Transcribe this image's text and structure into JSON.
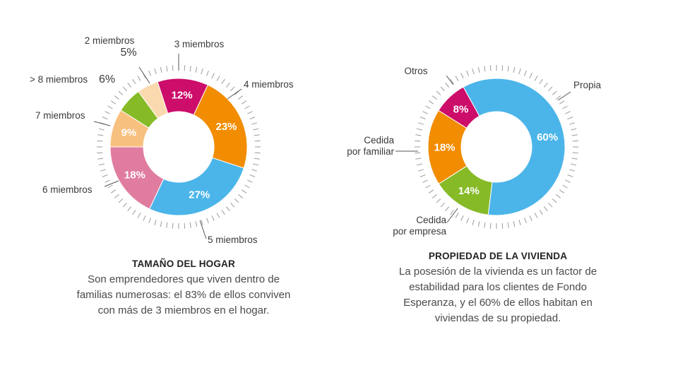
{
  "colors": {
    "magenta": "#cc0d6a",
    "orange": "#f28c00",
    "blue": "#4bb5e9",
    "pink": "#e07ca0",
    "light_orange": "#f8c07f",
    "green": "#86ba27",
    "beige": "#fbd9ae"
  },
  "chart_data": [
    {
      "type": "pie",
      "title": "TAMAÑO DEL HOGAR",
      "description": "Son emprendedores que viven dentro de familias numerosas: el 83% de ellos conviven con más de 3 miembros en el hogar.",
      "slices": [
        {
          "label": "3 miembros",
          "value": 12,
          "display": "12%",
          "color": "#cc0d6a"
        },
        {
          "label": "4 miembros",
          "value": 23,
          "display": "23%",
          "color": "#f28c00"
        },
        {
          "label": "5 miembros",
          "value": 27,
          "display": "27%",
          "color": "#4bb5e9"
        },
        {
          "label": "6 miembros",
          "value": 18,
          "display": "18%",
          "color": "#e07ca0"
        },
        {
          "label": "7 miembros",
          "value": 9,
          "display": "9%",
          "color": "#f8c07f"
        },
        {
          "label": "> 8 miembros",
          "value": 6,
          "display": "6%",
          "color": "#86ba27"
        },
        {
          "label": "2 miembros",
          "value": 5,
          "display": "5%",
          "color": "#fbd9ae"
        }
      ]
    },
    {
      "type": "pie",
      "title": "PROPIEDAD DE LA VIVIENDA",
      "description": "La posesión de la vivienda es un factor de estabilidad para los clientes de Fondo Esperanza, y el 60% de ellos habitan en viviendas de su propiedad.",
      "slices": [
        {
          "label": "Propia",
          "value": 60,
          "display": "60%",
          "color": "#4bb5e9"
        },
        {
          "label": "Cedida por empresa",
          "value": 14,
          "display": "14%",
          "color": "#86ba27"
        },
        {
          "label": "Cedida por familiar",
          "value": 18,
          "display": "18%",
          "color": "#f28c00"
        },
        {
          "label": "Otros",
          "value": 8,
          "display": "8%",
          "color": "#cc0d6a"
        }
      ]
    }
  ],
  "captions": {
    "left_title": "TAMAÑO DEL HOGAR",
    "left_text": "Son emprendedores que viven dentro de familias numerosas: el 83% de ellos conviven con más de 3 miembros en el hogar.",
    "right_title": "PROPIEDAD DE LA VIVIENDA",
    "right_text": "La posesión de la vivienda es un factor de estabilidad para los clientes de Fondo Esperanza, y el 60% de ellos habitan en viviendas de su propiedad."
  },
  "outer_labels": {
    "left": {
      "two_name": "2 miembros",
      "two_pct": "5%",
      "three": "3 miembros",
      "four": "4 miembros",
      "five": "5 miembros",
      "six": "6 miembros",
      "seven": "7 miembros",
      "eight_name": "> 8 miembros",
      "eight_pct": "6%"
    },
    "right": {
      "otros": "Otros",
      "propia": "Propia",
      "familiar_line1": "Cedida",
      "familiar_line2": "por familiar",
      "empresa_line1": "Cedida",
      "empresa_line2": "por empresa"
    }
  }
}
